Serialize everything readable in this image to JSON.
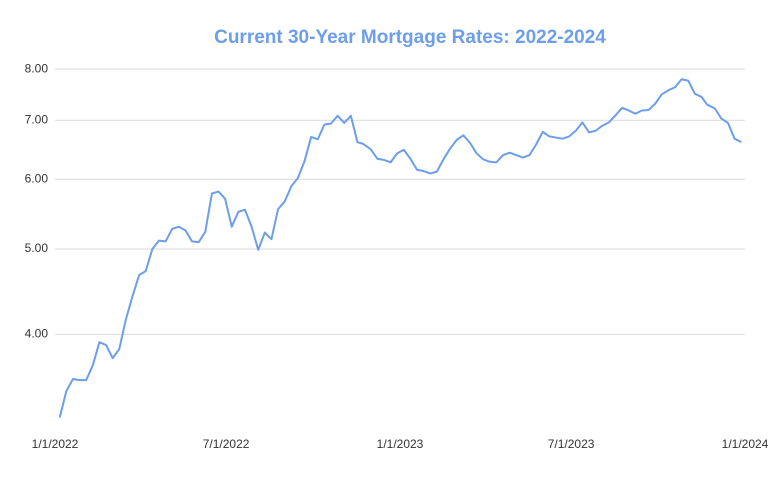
{
  "chart_data": {
    "type": "line",
    "title": "Current 30-Year Mortgage Rates: 2022-2024",
    "title_color": "#6d9eeb",
    "x": [
      "2022-01-06",
      "2022-01-13",
      "2022-01-20",
      "2022-01-27",
      "2022-02-03",
      "2022-02-10",
      "2022-02-17",
      "2022-02-24",
      "2022-03-03",
      "2022-03-10",
      "2022-03-17",
      "2022-03-24",
      "2022-03-31",
      "2022-04-07",
      "2022-04-14",
      "2022-04-21",
      "2022-04-28",
      "2022-05-05",
      "2022-05-12",
      "2022-05-19",
      "2022-05-26",
      "2022-06-02",
      "2022-06-09",
      "2022-06-16",
      "2022-06-23",
      "2022-06-30",
      "2022-07-07",
      "2022-07-14",
      "2022-07-21",
      "2022-07-28",
      "2022-08-04",
      "2022-08-11",
      "2022-08-18",
      "2022-08-25",
      "2022-09-01",
      "2022-09-08",
      "2022-09-15",
      "2022-09-22",
      "2022-09-29",
      "2022-10-06",
      "2022-10-13",
      "2022-10-20",
      "2022-10-27",
      "2022-11-03",
      "2022-11-10",
      "2022-11-17",
      "2022-11-23",
      "2022-12-01",
      "2022-12-08",
      "2022-12-15",
      "2022-12-22",
      "2022-12-29",
      "2023-01-05",
      "2023-01-12",
      "2023-01-19",
      "2023-01-26",
      "2023-02-02",
      "2023-02-09",
      "2023-02-16",
      "2023-02-23",
      "2023-03-02",
      "2023-03-09",
      "2023-03-16",
      "2023-03-23",
      "2023-03-30",
      "2023-04-06",
      "2023-04-13",
      "2023-04-20",
      "2023-04-27",
      "2023-05-04",
      "2023-05-11",
      "2023-05-18",
      "2023-05-25",
      "2023-06-01",
      "2023-06-08",
      "2023-06-15",
      "2023-06-22",
      "2023-06-29",
      "2023-07-06",
      "2023-07-13",
      "2023-07-20",
      "2023-07-27",
      "2023-08-03",
      "2023-08-10",
      "2023-08-17",
      "2023-08-24",
      "2023-08-31",
      "2023-09-07",
      "2023-09-14",
      "2023-09-21",
      "2023-09-28",
      "2023-10-05",
      "2023-10-12",
      "2023-10-19",
      "2023-10-26",
      "2023-11-02",
      "2023-11-09",
      "2023-11-16",
      "2023-11-22",
      "2023-11-30",
      "2023-12-07",
      "2023-12-14",
      "2023-12-21",
      "2023-12-28"
    ],
    "series": [
      {
        "color": "#6d9eeb",
        "values": [
          3.22,
          3.45,
          3.56,
          3.55,
          3.55,
          3.69,
          3.92,
          3.89,
          3.76,
          3.85,
          4.16,
          4.42,
          4.67,
          4.72,
          5.0,
          5.11,
          5.1,
          5.27,
          5.3,
          5.25,
          5.1,
          5.09,
          5.23,
          5.78,
          5.81,
          5.7,
          5.3,
          5.51,
          5.54,
          5.3,
          4.99,
          5.22,
          5.13,
          5.55,
          5.66,
          5.89,
          6.02,
          6.29,
          6.7,
          6.66,
          6.92,
          6.94,
          7.08,
          6.95,
          7.08,
          6.61,
          6.58,
          6.49,
          6.33,
          6.31,
          6.27,
          6.42,
          6.48,
          6.33,
          6.15,
          6.13,
          6.09,
          6.12,
          6.32,
          6.5,
          6.65,
          6.73,
          6.6,
          6.42,
          6.32,
          6.28,
          6.27,
          6.39,
          6.43,
          6.39,
          6.35,
          6.39,
          6.57,
          6.79,
          6.71,
          6.69,
          6.67,
          6.71,
          6.81,
          6.96,
          6.78,
          6.81,
          6.9,
          6.96,
          7.09,
          7.23,
          7.18,
          7.12,
          7.18,
          7.19,
          7.31,
          7.49,
          7.57,
          7.63,
          7.79,
          7.76,
          7.5,
          7.44,
          7.29,
          7.22,
          7.03,
          6.95,
          6.67,
          6.61
        ]
      }
    ],
    "log_scale": true,
    "grid": true,
    "ylim": [
      3.1,
      8.3
    ],
    "yticks": [
      {
        "value": 4,
        "label": "4.00"
      },
      {
        "value": 5,
        "label": "5.00"
      },
      {
        "value": 6,
        "label": "6.00"
      },
      {
        "value": 7,
        "label": "7.00"
      },
      {
        "value": 8,
        "label": "8.00"
      }
    ],
    "xlim": [
      "2022-01-01",
      "2024-01-01"
    ],
    "xticks": [
      {
        "value": "2022-01-01",
        "label": "1/1/2022"
      },
      {
        "value": "2022-07-01",
        "label": "7/1/2022"
      },
      {
        "value": "2023-01-01",
        "label": "1/1/2023"
      },
      {
        "value": "2023-07-01",
        "label": "7/1/2023"
      },
      {
        "value": "2024-01-01",
        "label": "1/1/2024"
      }
    ]
  }
}
